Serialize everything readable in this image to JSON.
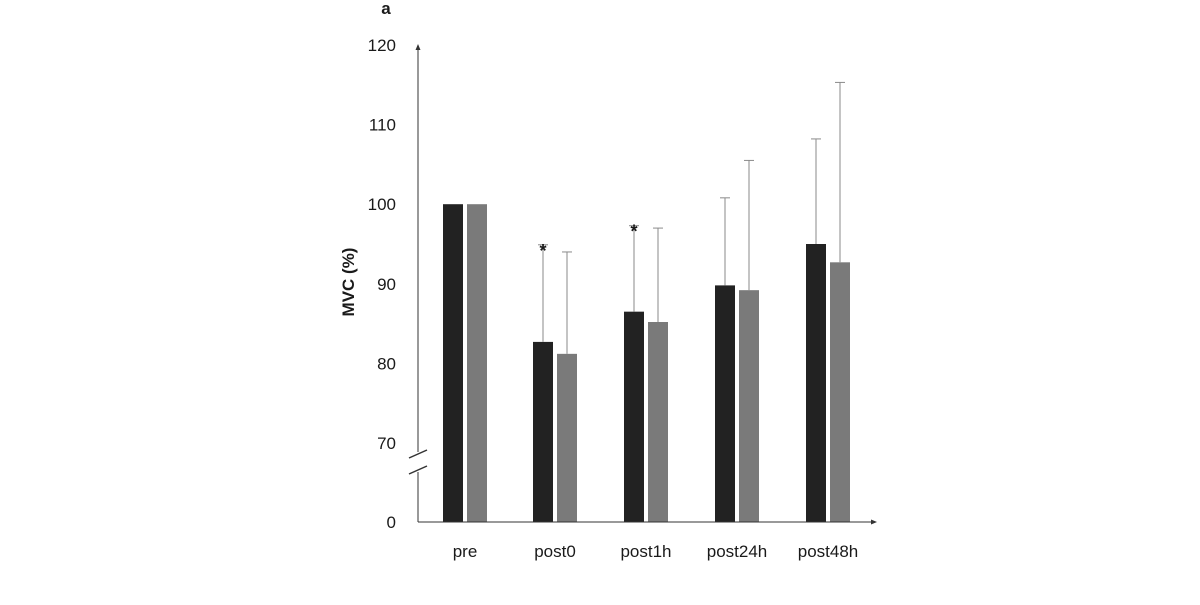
{
  "chart_data": {
    "type": "bar",
    "panel_label": "a",
    "title": "",
    "xlabel": "",
    "ylabel": "MVC (%)",
    "ylim": [
      70,
      120
    ],
    "axis_break": true,
    "y_ticks": [
      "0",
      "70",
      "80",
      "90",
      "100",
      "110",
      "120"
    ],
    "categories": [
      "pre",
      "post0",
      "post1h",
      "post24h",
      "post48h"
    ],
    "grid": false,
    "legend": "none",
    "series": [
      {
        "color": "#222222",
        "values": [
          100,
          82.7,
          86.5,
          89.8,
          95.0
        ],
        "error_upper": [
          0,
          12.2,
          10.8,
          11.0,
          13.2
        ],
        "significance": [
          "",
          "*",
          "*",
          "",
          ""
        ]
      },
      {
        "color": "#7a7a7a",
        "values": [
          100,
          81.2,
          85.2,
          89.2,
          92.7
        ],
        "error_upper": [
          0,
          12.8,
          11.8,
          16.3,
          22.6
        ],
        "significance": [
          "",
          "",
          "",
          "",
          ""
        ]
      }
    ]
  }
}
